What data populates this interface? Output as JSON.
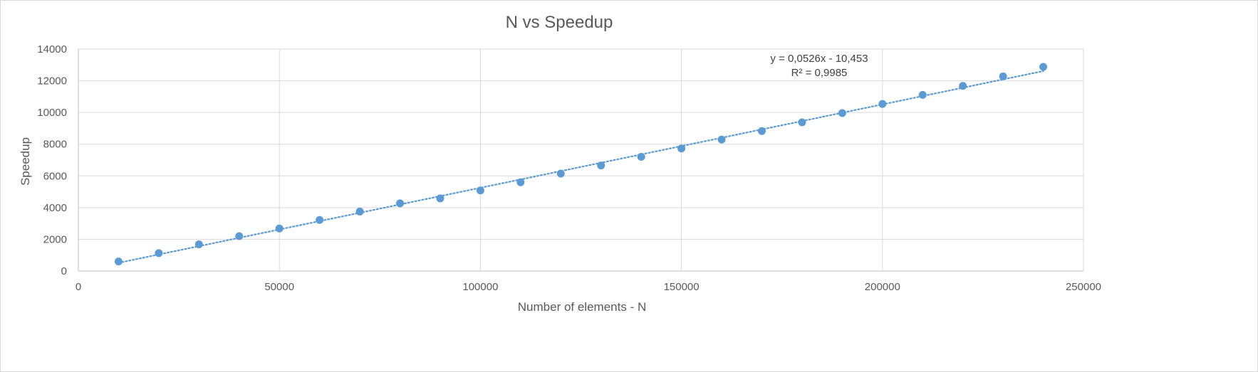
{
  "chart_data": {
    "type": "scatter",
    "title": "N vs Speedup",
    "xlabel": "Number of elements - N",
    "ylabel": "Speedup",
    "xlim": [
      0,
      250000
    ],
    "ylim": [
      0,
      14000
    ],
    "xticks": [
      0,
      50000,
      100000,
      150000,
      200000,
      250000
    ],
    "yticks": [
      0,
      2000,
      4000,
      6000,
      8000,
      10000,
      12000,
      14000
    ],
    "grid": true,
    "legend": "none",
    "marker_color": "#5b9bd5",
    "series": [
      {
        "x": [
          10000,
          20000,
          30000,
          40000,
          50000,
          60000,
          70000,
          80000,
          90000,
          100000,
          110000,
          120000,
          130000,
          140000,
          150000,
          160000,
          170000,
          180000,
          190000,
          200000,
          210000,
          220000,
          230000,
          240000
        ],
        "y": [
          600,
          1130,
          1680,
          2200,
          2680,
          3220,
          3750,
          4270,
          4580,
          5080,
          5600,
          6140,
          6660,
          7200,
          7730,
          8290,
          8830,
          9380,
          9960,
          10540,
          11110,
          11680,
          12280,
          12880
        ]
      }
    ],
    "trendline": {
      "type": "linear",
      "style": "dotted",
      "color": "#5b9bd5",
      "slope": 0.0526,
      "intercept": -10.453,
      "x_range": [
        10000,
        240000
      ],
      "equation": "y = 0,0526x - 10,453",
      "r2": "R² = 0,9985"
    }
  }
}
